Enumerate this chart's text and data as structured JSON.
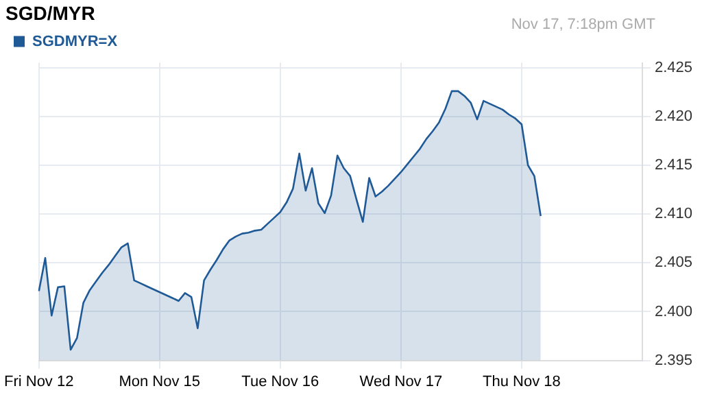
{
  "chart_data": {
    "type": "area",
    "title": "SGD/MYR",
    "annotations": [
      "Nov 17, 7:18pm GMT"
    ],
    "legend": "top left",
    "grid": true,
    "categories": [
      "Fri Nov 12",
      null,
      null,
      null,
      null,
      null,
      null,
      null,
      null,
      null,
      null,
      null,
      null,
      null,
      null,
      null,
      null,
      null,
      null,
      "Mon Nov 15",
      null,
      null,
      null,
      null,
      null,
      null,
      null,
      null,
      null,
      null,
      null,
      null,
      null,
      null,
      null,
      null,
      null,
      null,
      "Tue Nov 16",
      null,
      null,
      null,
      null,
      null,
      null,
      null,
      null,
      null,
      null,
      null,
      null,
      null,
      null,
      null,
      null,
      null,
      null,
      "Wed Nov 17",
      null,
      null,
      null,
      null,
      null,
      null,
      null,
      null,
      null,
      null,
      null,
      null,
      null,
      null,
      null,
      null,
      null,
      null,
      "Thu Nov 18",
      null,
      null,
      null,
      null,
      null,
      null,
      null,
      null,
      null,
      null,
      null,
      null,
      null,
      null,
      null,
      null,
      null,
      null,
      null
    ],
    "ylim": [
      2.395,
      2.4255
    ],
    "yticks": [
      2.395,
      {
        "value": 2.4,
        "label": "2.400"
      },
      2.405,
      {
        "value": 2.41,
        "label": "2.410"
      },
      2.415,
      {
        "value": 2.42,
        "label": "2.420"
      },
      2.425
    ],
    "series": [
      {
        "name": "SGDMYR=X",
        "color": "#1f5a96",
        "values": [
          2.4021,
          2.4055,
          2.3996,
          2.4025,
          2.4026,
          2.3961,
          2.3973,
          2.4009,
          2.4022,
          2.4031,
          2.404,
          2.4048,
          2.4057,
          2.4066,
          2.407,
          2.4032,
          2.4029,
          2.4026,
          2.4023,
          2.402,
          2.4017,
          2.4014,
          2.4011,
          2.4019,
          2.4015,
          2.3983,
          2.4032,
          2.4043,
          2.4053,
          2.4064,
          2.4073,
          2.4077,
          2.408,
          2.4081,
          2.4083,
          2.4084,
          2.409,
          2.4096,
          2.4102,
          2.4112,
          2.4126,
          2.4162,
          2.4124,
          2.4147,
          2.4111,
          2.4101,
          2.4119,
          2.416,
          2.4147,
          2.4139,
          2.4115,
          2.4092,
          2.4137,
          2.4118,
          2.4123,
          2.4129,
          2.4136,
          2.4143,
          2.4151,
          2.4159,
          2.4167,
          2.4177,
          2.4185,
          2.4194,
          2.4208,
          2.4226,
          2.4226,
          2.4221,
          2.4214,
          2.4197,
          2.4216,
          2.4213,
          2.421,
          2.4207,
          2.4202,
          2.4198,
          2.4192,
          2.415,
          2.4139,
          2.4098,
          null,
          null,
          null,
          null,
          null,
          null,
          null,
          null,
          null,
          null,
          null,
          null,
          null,
          null,
          null,
          null
        ]
      }
    ]
  }
}
